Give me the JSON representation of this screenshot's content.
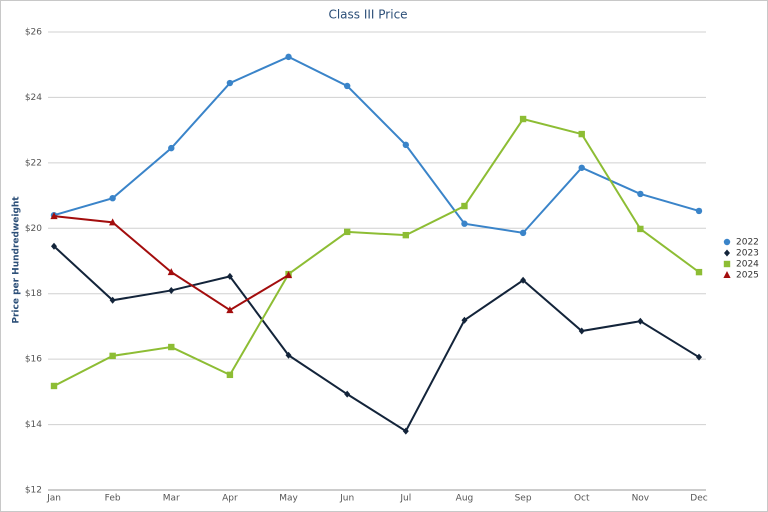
{
  "chart_data": {
    "type": "line",
    "title": "Class III Price",
    "y_label": "Price per Hundredweight",
    "categories": [
      "Jan",
      "Feb",
      "Mar",
      "Apr",
      "May",
      "Jun",
      "Jul",
      "Aug",
      "Sep",
      "Oct",
      "Nov",
      "Dec"
    ],
    "series": [
      {
        "name": "2022",
        "color": "#3a84c9",
        "marker": "circle",
        "values": [
          20.4,
          20.92,
          22.45,
          24.44,
          25.24,
          24.35,
          22.55,
          20.14,
          19.86,
          21.85,
          21.05,
          20.53
        ]
      },
      {
        "name": "2023",
        "color": "#13243a",
        "marker": "diamond",
        "values": [
          19.45,
          17.8,
          18.1,
          18.53,
          16.12,
          14.93,
          13.8,
          17.19,
          18.41,
          16.86,
          17.16,
          16.06
        ]
      },
      {
        "name": "2024",
        "color": "#8dbd34",
        "marker": "square",
        "values": [
          15.18,
          16.1,
          16.37,
          15.52,
          18.6,
          19.89,
          19.79,
          20.68,
          23.34,
          22.88,
          19.98,
          18.66
        ]
      },
      {
        "name": "2025",
        "color": "#a30d0d",
        "marker": "triangle",
        "values": [
          20.37,
          20.18,
          18.66,
          17.5,
          18.57,
          null,
          null,
          null,
          null,
          null,
          null,
          null
        ]
      }
    ],
    "ylim": [
      12,
      26
    ],
    "yticks": [
      {
        "value": 12,
        "label": "$12"
      },
      {
        "value": 14,
        "label": "$14"
      },
      {
        "value": 16,
        "label": "$16"
      },
      {
        "value": 18,
        "label": "$18"
      },
      {
        "value": 20,
        "label": "$20"
      },
      {
        "value": 22,
        "label": "$22"
      },
      {
        "value": 24,
        "label": "$24"
      },
      {
        "value": 26,
        "label": "$26"
      }
    ],
    "grid": true,
    "legend": "right"
  }
}
